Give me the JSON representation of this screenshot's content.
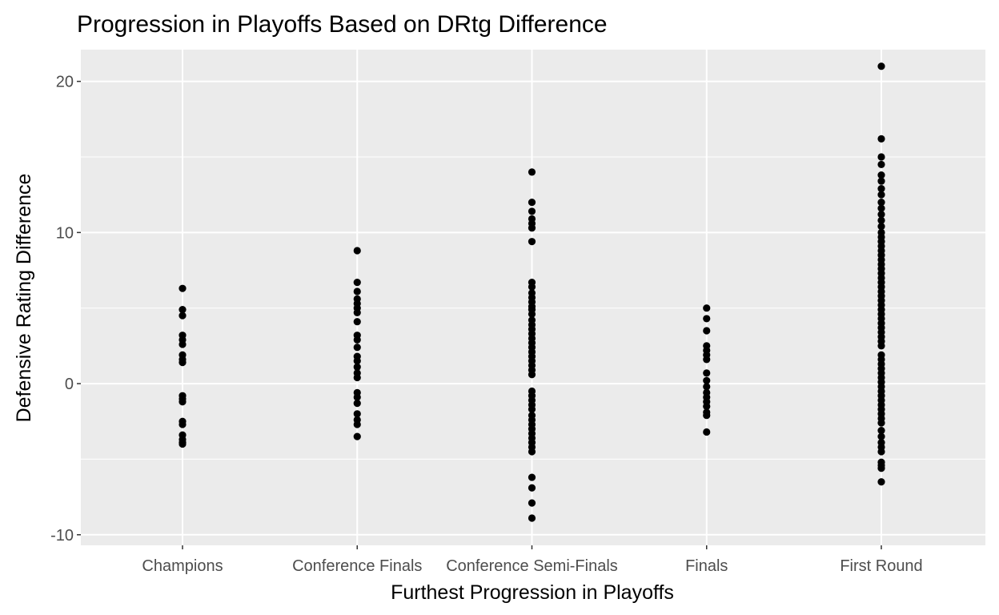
{
  "chart_data": {
    "type": "scatter",
    "title": "Progression in Playoffs Based on DRtg Difference",
    "xlabel": "Furthest Progression in Playoffs",
    "ylabel": "Defensive Rating Difference",
    "categories": [
      "Champions",
      "Conference Finals",
      "Conference Semi-Finals",
      "Finals",
      "First Round"
    ],
    "y_ticks": [
      "-10",
      "0",
      "10",
      "20"
    ],
    "y_tick_values": [
      -10,
      0,
      10,
      20
    ],
    "ylim": [
      -10.7,
      22.1
    ],
    "grid": true,
    "point_color": "#000000",
    "panel_color": "#ebebeb",
    "grid_color": "#ffffff",
    "series": [
      {
        "values": [
          [
            0,
            6.3
          ],
          [
            0,
            4.9
          ],
          [
            0,
            4.5
          ],
          [
            0,
            3.2
          ],
          [
            0,
            2.9
          ],
          [
            0,
            2.6
          ],
          [
            0,
            1.9
          ],
          [
            0,
            1.6
          ],
          [
            0,
            1.4
          ],
          [
            0,
            -0.8
          ],
          [
            0,
            -1.0
          ],
          [
            0,
            -1.2
          ],
          [
            0,
            -2.5
          ],
          [
            0,
            -2.7
          ],
          [
            0,
            -3.4
          ],
          [
            0,
            -3.7
          ],
          [
            0,
            -3.9
          ],
          [
            0,
            -4.0
          ],
          [
            1,
            8.8
          ],
          [
            1,
            6.7
          ],
          [
            1,
            6.1
          ],
          [
            1,
            5.6
          ],
          [
            1,
            5.3
          ],
          [
            1,
            5.0
          ],
          [
            1,
            4.7
          ],
          [
            1,
            4.1
          ],
          [
            1,
            3.2
          ],
          [
            1,
            2.9
          ],
          [
            1,
            2.4
          ],
          [
            1,
            1.8
          ],
          [
            1,
            1.5
          ],
          [
            1,
            1.1
          ],
          [
            1,
            0.7
          ],
          [
            1,
            0.4
          ],
          [
            1,
            -0.6
          ],
          [
            1,
            -0.9
          ],
          [
            1,
            -1.3
          ],
          [
            1,
            -2.0
          ],
          [
            1,
            -2.4
          ],
          [
            1,
            -2.7
          ],
          [
            1,
            -3.5
          ],
          [
            2,
            14.0
          ],
          [
            2,
            12.0
          ],
          [
            2,
            11.4
          ],
          [
            2,
            10.9
          ],
          [
            2,
            10.6
          ],
          [
            2,
            10.3
          ],
          [
            2,
            9.4
          ],
          [
            2,
            6.7
          ],
          [
            2,
            6.4
          ],
          [
            2,
            6.0
          ],
          [
            2,
            5.7
          ],
          [
            2,
            5.4
          ],
          [
            2,
            5.1
          ],
          [
            2,
            4.9
          ],
          [
            2,
            4.6
          ],
          [
            2,
            4.2
          ],
          [
            2,
            3.9
          ],
          [
            2,
            3.6
          ],
          [
            2,
            3.3
          ],
          [
            2,
            3.0
          ],
          [
            2,
            2.7
          ],
          [
            2,
            2.4
          ],
          [
            2,
            2.1
          ],
          [
            2,
            1.8
          ],
          [
            2,
            1.5
          ],
          [
            2,
            1.2
          ],
          [
            2,
            0.9
          ],
          [
            2,
            0.6
          ],
          [
            2,
            -0.5
          ],
          [
            2,
            -0.8
          ],
          [
            2,
            -1.1
          ],
          [
            2,
            -1.4
          ],
          [
            2,
            -1.7
          ],
          [
            2,
            -2.1
          ],
          [
            2,
            -2.4
          ],
          [
            2,
            -2.7
          ],
          [
            2,
            -3.0
          ],
          [
            2,
            -3.3
          ],
          [
            2,
            -3.6
          ],
          [
            2,
            -3.9
          ],
          [
            2,
            -4.2
          ],
          [
            2,
            -4.5
          ],
          [
            2,
            -6.2
          ],
          [
            2,
            -6.9
          ],
          [
            2,
            -7.9
          ],
          [
            2,
            -8.9
          ],
          [
            3,
            5.0
          ],
          [
            3,
            4.3
          ],
          [
            3,
            3.5
          ],
          [
            3,
            2.5
          ],
          [
            3,
            2.2
          ],
          [
            3,
            1.9
          ],
          [
            3,
            1.6
          ],
          [
            3,
            0.7
          ],
          [
            3,
            0.2
          ],
          [
            3,
            -0.2
          ],
          [
            3,
            -0.6
          ],
          [
            3,
            -0.9
          ],
          [
            3,
            -1.2
          ],
          [
            3,
            -1.5
          ],
          [
            3,
            -1.9
          ],
          [
            3,
            -2.1
          ],
          [
            3,
            -3.2
          ],
          [
            4,
            21.0
          ],
          [
            4,
            16.2
          ],
          [
            4,
            15.0
          ],
          [
            4,
            14.5
          ],
          [
            4,
            13.8
          ],
          [
            4,
            13.4
          ],
          [
            4,
            12.9
          ],
          [
            4,
            12.5
          ],
          [
            4,
            12.0
          ],
          [
            4,
            11.6
          ],
          [
            4,
            11.2
          ],
          [
            4,
            10.8
          ],
          [
            4,
            10.4
          ],
          [
            4,
            10.0
          ],
          [
            4,
            9.7
          ],
          [
            4,
            9.4
          ],
          [
            4,
            9.1
          ],
          [
            4,
            8.8
          ],
          [
            4,
            8.5
          ],
          [
            4,
            8.2
          ],
          [
            4,
            7.9
          ],
          [
            4,
            7.6
          ],
          [
            4,
            7.3
          ],
          [
            4,
            7.0
          ],
          [
            4,
            6.7
          ],
          [
            4,
            6.4
          ],
          [
            4,
            6.1
          ],
          [
            4,
            5.8
          ],
          [
            4,
            5.5
          ],
          [
            4,
            5.2
          ],
          [
            4,
            4.9
          ],
          [
            4,
            4.6
          ],
          [
            4,
            4.3
          ],
          [
            4,
            4.0
          ],
          [
            4,
            3.7
          ],
          [
            4,
            3.4
          ],
          [
            4,
            3.1
          ],
          [
            4,
            2.8
          ],
          [
            4,
            2.5
          ],
          [
            4,
            1.9
          ],
          [
            4,
            1.6
          ],
          [
            4,
            1.3
          ],
          [
            4,
            1.0
          ],
          [
            4,
            0.7
          ],
          [
            4,
            0.4
          ],
          [
            4,
            0.1
          ],
          [
            4,
            -0.2
          ],
          [
            4,
            -0.5
          ],
          [
            4,
            -0.8
          ],
          [
            4,
            -1.1
          ],
          [
            4,
            -1.4
          ],
          [
            4,
            -1.7
          ],
          [
            4,
            -2.0
          ],
          [
            4,
            -2.3
          ],
          [
            4,
            -2.6
          ],
          [
            4,
            -3.1
          ],
          [
            4,
            -3.5
          ],
          [
            4,
            -3.9
          ],
          [
            4,
            -4.2
          ],
          [
            4,
            -4.5
          ],
          [
            4,
            -5.2
          ],
          [
            4,
            -5.4
          ],
          [
            4,
            -5.6
          ],
          [
            4,
            -6.5
          ]
        ]
      }
    ]
  }
}
